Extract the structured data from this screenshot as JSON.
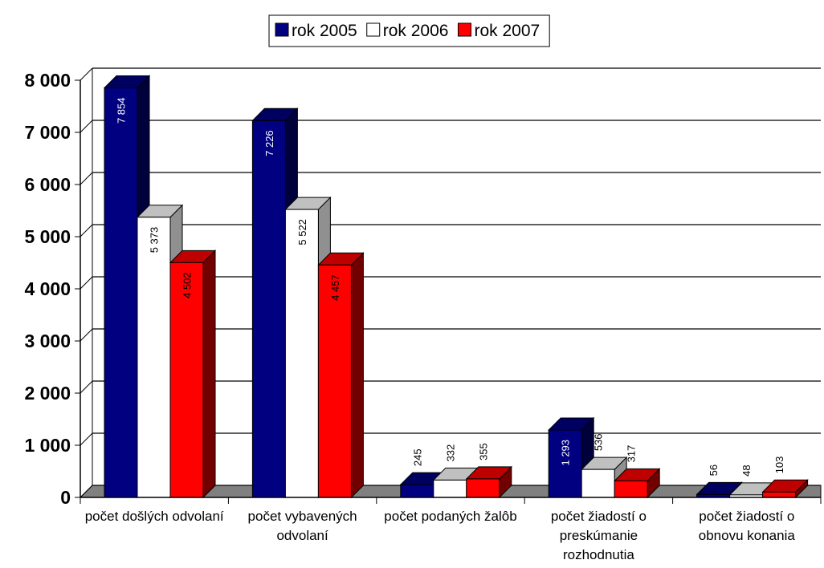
{
  "chart_data": {
    "type": "bar3d",
    "categories": [
      "počet došlých odvolaní",
      "počet vybavených odvolaní",
      "počet podaných žalôb",
      "počet žiadostí o preskúmanie rozhodnutia",
      "počet žiadostí o obnovu konania"
    ],
    "series": [
      {
        "name": "rok 2005",
        "color": "#000080",
        "values": [
          7854,
          7226,
          245,
          1293,
          56
        ],
        "value_labels": [
          "7 854",
          "7 226",
          "245",
          "1 293",
          "56"
        ]
      },
      {
        "name": "rok 2006",
        "color": "#ffffff",
        "values": [
          5373,
          5522,
          332,
          536,
          48
        ],
        "value_labels": [
          "5 373",
          "5 522",
          "332",
          "536",
          "48"
        ]
      },
      {
        "name": "rok 2007",
        "color": "#ff0000",
        "values": [
          4502,
          4457,
          355,
          317,
          103
        ],
        "value_labels": [
          "4 502",
          "4 457",
          "355",
          "317",
          "103"
        ]
      }
    ],
    "ylim": [
      0,
      8000
    ],
    "yticks": [
      0,
      {
        "value": 1000,
        "label": "1 000"
      },
      {
        "value": 2000,
        "label": "2 000"
      },
      {
        "value": 3000,
        "label": "3 000"
      },
      {
        "value": 4000,
        "label": "4 000"
      },
      {
        "value": 5000,
        "label": "5 000"
      },
      {
        "value": 6000,
        "label": "6 000"
      },
      {
        "value": 7000,
        "label": "7 000"
      },
      {
        "value": 8000,
        "label": "8 000"
      }
    ],
    "grid": true,
    "legend": "top"
  }
}
